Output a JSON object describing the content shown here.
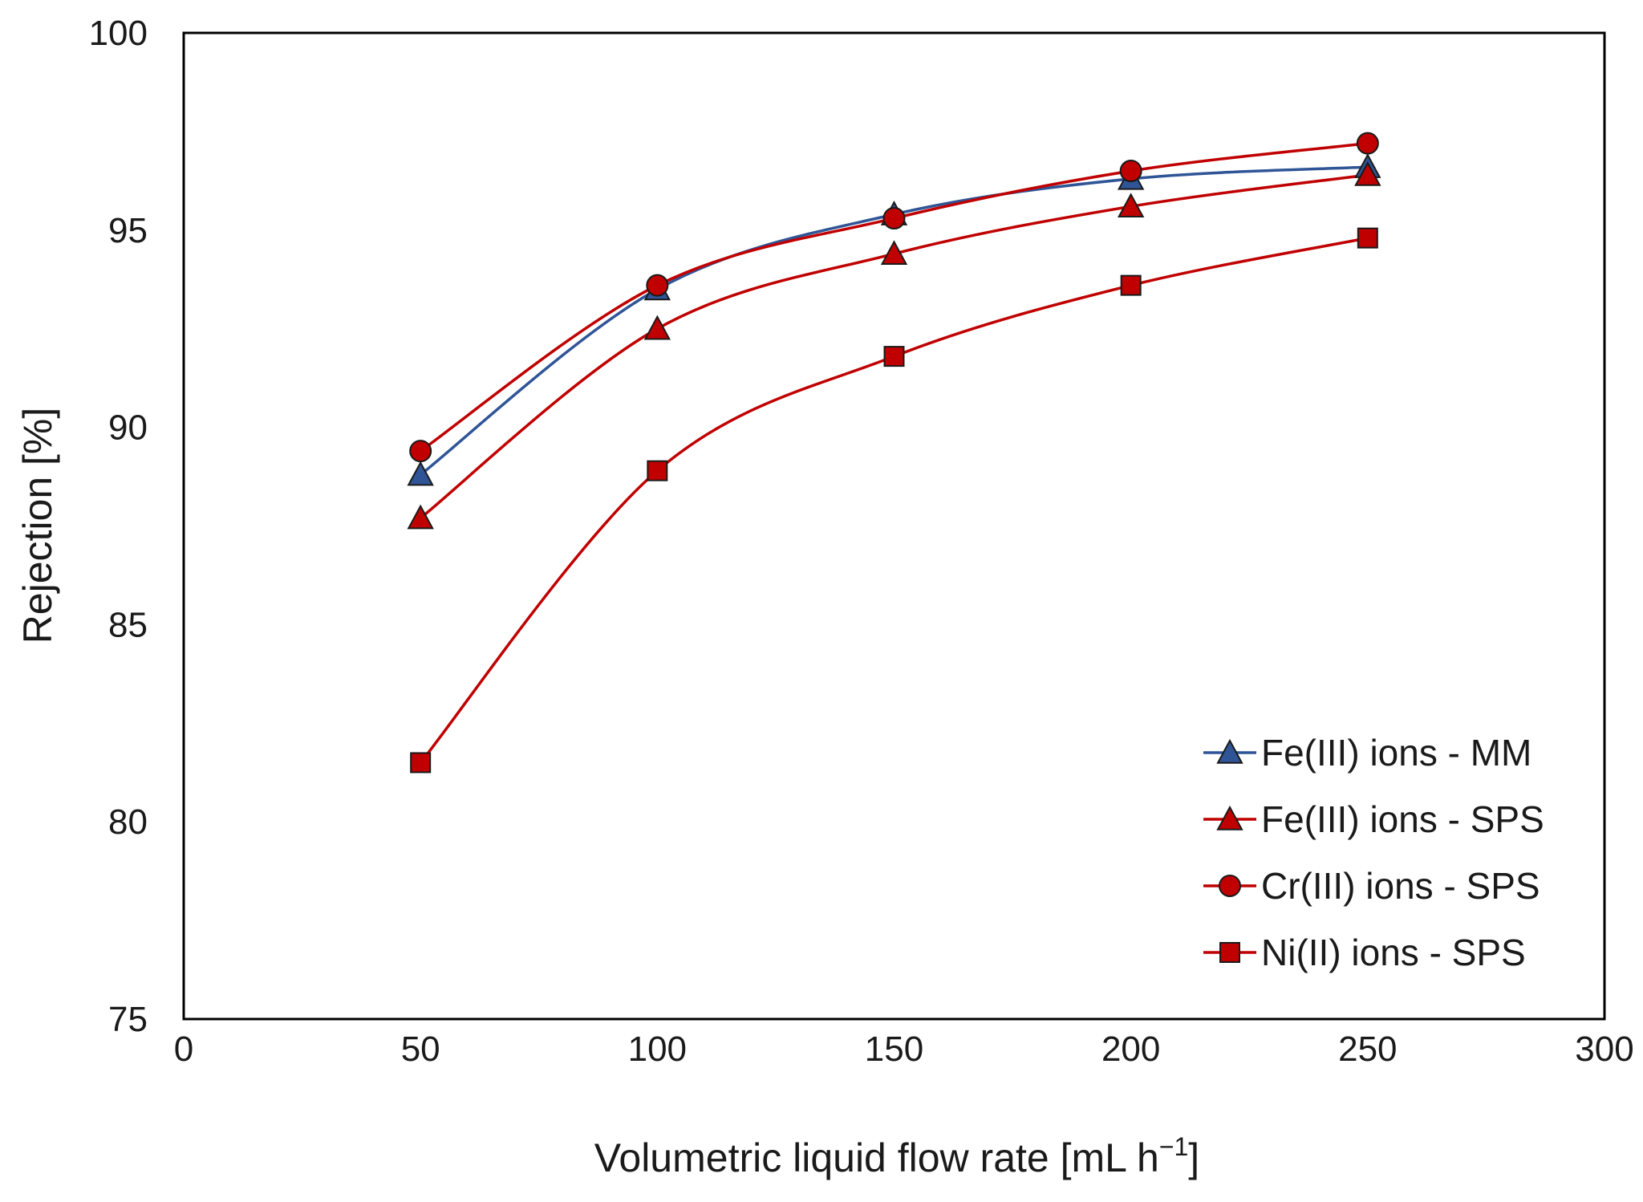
{
  "chart_data": {
    "type": "line",
    "title": "",
    "xlabel": "Volumetric liquid flow rate [mL h",
    "xlabel_sup": "−1",
    "xlabel_suffix": "]",
    "ylabel": "Rejection [%]",
    "xlim": [
      0,
      300
    ],
    "ylim": [
      75,
      100
    ],
    "xticks": [
      0,
      50,
      100,
      150,
      200,
      250,
      300
    ],
    "yticks": [
      75,
      80,
      85,
      90,
      95,
      100
    ],
    "grid": false,
    "legend_position": "bottom-right",
    "x": [
      50,
      100,
      150,
      200,
      250
    ],
    "series": [
      {
        "name": "Fe(III) ions - MM",
        "marker": "triangle",
        "line_color": "#2f5597",
        "marker_fill": "#2f5597",
        "values": [
          88.8,
          93.5,
          95.4,
          96.3,
          96.6
        ]
      },
      {
        "name": "Fe(III) ions - SPS",
        "marker": "triangle",
        "line_color": "#c00000",
        "marker_fill": "#c00000",
        "values": [
          87.7,
          92.5,
          94.4,
          95.6,
          96.4
        ]
      },
      {
        "name": "Cr(III) ions - SPS",
        "marker": "circle",
        "line_color": "#c00000",
        "marker_fill": "#c00000",
        "values": [
          89.4,
          93.6,
          95.3,
          96.5,
          97.2
        ]
      },
      {
        "name": "Ni(II) ions - SPS",
        "marker": "square",
        "line_color": "#c00000",
        "marker_fill": "#c00000",
        "values": [
          81.5,
          88.9,
          91.8,
          93.6,
          94.8
        ]
      }
    ]
  }
}
